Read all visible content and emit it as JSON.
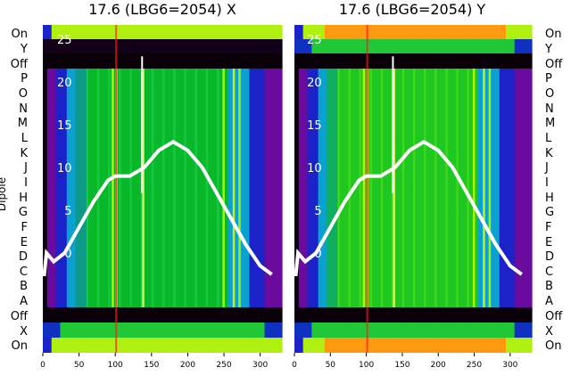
{
  "colors": {
    "trace": "#ffffff",
    "dark_band": "#0a0008",
    "accent_red": "#ff1a1a"
  },
  "chart_data": [
    {
      "type": "heatmap",
      "title": "17.6 (LBG6=2054) X",
      "ylabel": "Dipole",
      "x_ticks": [
        0,
        50,
        100,
        150,
        200,
        250,
        300
      ],
      "xlim": [
        0,
        330
      ],
      "inner_yticks": [
        0,
        5,
        10,
        15,
        20,
        25
      ],
      "rows_top_to_bottom": [
        "On",
        "Y",
        "Off",
        "P",
        "O",
        "N",
        "M",
        "L",
        "K",
        "J",
        "I",
        "H",
        "G",
        "F",
        "E",
        "D",
        "C",
        "B",
        "A",
        "Off",
        "X",
        "On"
      ],
      "label_side": "left",
      "colormap": "nipy_spectral",
      "grid": false
    },
    {
      "type": "heatmap",
      "title": "17.6 (LBG6=2054) Y",
      "ylabel": "",
      "x_ticks": [
        0,
        50,
        100,
        150,
        200,
        250,
        300
      ],
      "xlim": [
        0,
        330
      ],
      "inner_yticks": [
        0,
        5,
        10,
        15,
        20,
        25
      ],
      "rows_top_to_bottom": [
        "On",
        "Y",
        "Off",
        "P",
        "O",
        "N",
        "M",
        "L",
        "K",
        "J",
        "I",
        "H",
        "G",
        "F",
        "E",
        "D",
        "C",
        "B",
        "A",
        "Off",
        "X",
        "On"
      ],
      "label_side": "right",
      "colormap": "nipy_spectral",
      "grid": false
    }
  ]
}
